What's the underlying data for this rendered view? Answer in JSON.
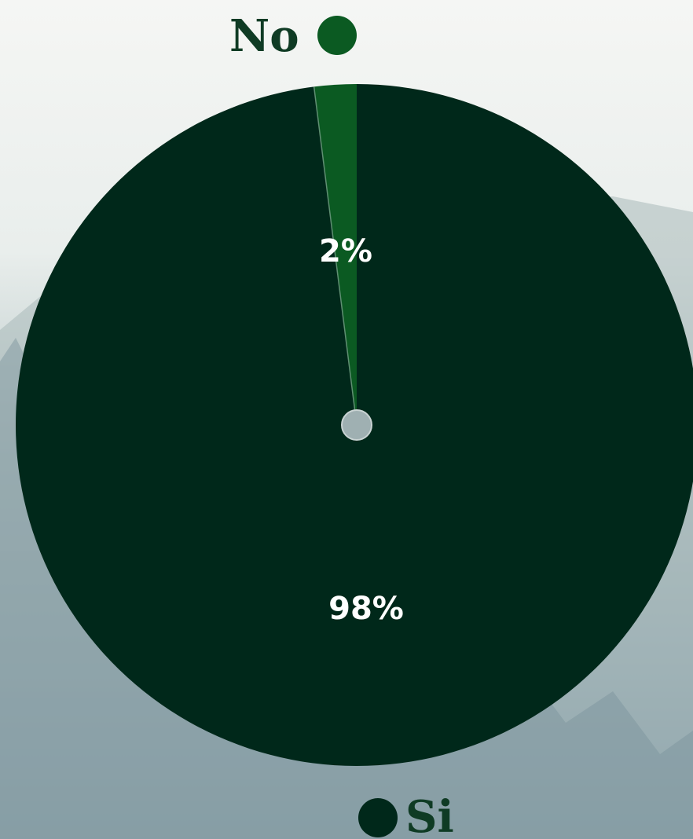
{
  "chart_data": {
    "type": "pie",
    "title": "",
    "categories": [
      "No",
      "Si"
    ],
    "values": [
      2,
      98
    ],
    "value_labels": [
      "2%",
      "98%"
    ],
    "colors": {
      "No": "#0b5a22",
      "Si": "#00281a"
    },
    "legend": [
      {
        "label": "No",
        "color": "#0b5a22",
        "placement": "top"
      },
      {
        "label": "Si",
        "color": "#00281a",
        "placement": "bottom"
      }
    ],
    "start_angle": "top",
    "direction": "counter-clockwise"
  },
  "background": {
    "top_color": "#f4f5f3",
    "mid_color": "#b9c6c6",
    "bottom_color": "#6f8a95"
  }
}
